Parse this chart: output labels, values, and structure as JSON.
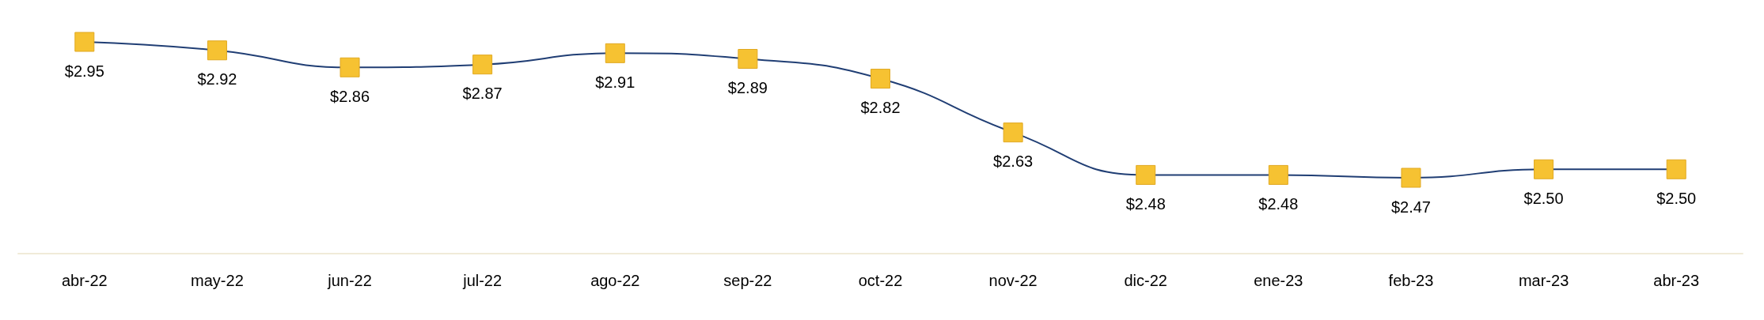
{
  "chart_data": {
    "type": "line",
    "categories": [
      "abr-22",
      "may-22",
      "jun-22",
      "jul-22",
      "ago-22",
      "sep-22",
      "oct-22",
      "nov-22",
      "dic-22",
      "ene-23",
      "feb-23",
      "mar-23",
      "abr-23"
    ],
    "series": [
      {
        "color": "#203e74",
        "colors": [
          "#f6c232",
          "#f6c232",
          "#f6c232",
          "#f6c232",
          "#f6c232",
          "#f6c232",
          "#f6c232",
          "#f6c232",
          "#f6c232",
          "#f6c232",
          "#f6c232",
          "#f6c232",
          "#f6c232"
        ],
        "values": [
          2.95,
          2.92,
          2.86,
          2.87,
          2.91,
          2.89,
          2.82,
          2.63,
          2.48,
          2.48,
          2.47,
          2.5,
          2.5
        ],
        "value_labels": [
          "$2.95",
          "$2.92",
          "$2.86",
          "$2.87",
          "$2.91",
          "$2.89",
          "$2.82",
          "$2.63",
          "$2.48",
          "$2.48",
          "$2.47",
          "$2.50",
          "$2.50"
        ]
      }
    ],
    "marker": "square"
  }
}
